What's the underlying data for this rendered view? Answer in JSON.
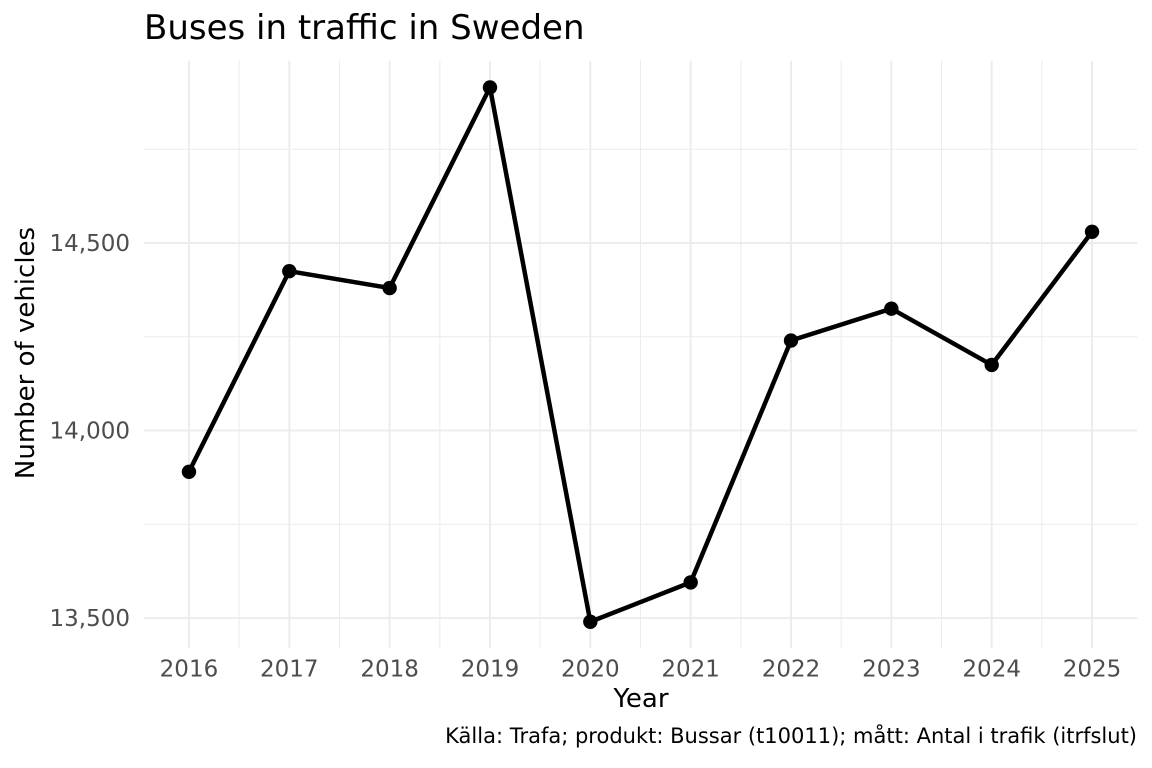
{
  "chart_data": {
    "type": "line",
    "title": "Buses in traffic in Sweden",
    "xlabel": "Year",
    "ylabel": "Number of vehicles",
    "caption": "Källa: Trafa; produkt: Bussar (t10011); mått: Antal i trafik (itrfslut)",
    "series_name": "buses-in-traffic",
    "x": [
      2016,
      2017,
      2018,
      2019,
      2020,
      2021,
      2022,
      2023,
      2024,
      2025
    ],
    "y": [
      13890,
      14425,
      14380,
      14915,
      13490,
      13595,
      14240,
      14325,
      14175,
      14530
    ],
    "x_ticks": [
      2016,
      2017,
      2018,
      2019,
      2020,
      2021,
      2022,
      2023,
      2024,
      2025
    ],
    "x_tick_labels": [
      "2016",
      "2017",
      "2018",
      "2019",
      "2020",
      "2021",
      "2022",
      "2023",
      "2024",
      "2025"
    ],
    "x_minor_ticks": [
      2016.5,
      2017.5,
      2018.5,
      2019.5,
      2020.5,
      2021.5,
      2022.5,
      2023.5,
      2024.5
    ],
    "y_ticks": [
      13500,
      14000,
      14500
    ],
    "y_tick_labels": [
      "13,500",
      "14,000",
      "14,500"
    ],
    "y_minor_ticks": [
      13750,
      14250,
      14750
    ],
    "xlim": [
      2015.55,
      2025.45
    ],
    "ylim": [
      13419,
      14986
    ],
    "grid": true,
    "legend_position": "none",
    "colors": {
      "line": "#000000",
      "point": "#000000",
      "grid": "#EBEBEB",
      "tick_label": "#4D4D4D",
      "text": "#000000",
      "background": "#FFFFFF"
    }
  }
}
